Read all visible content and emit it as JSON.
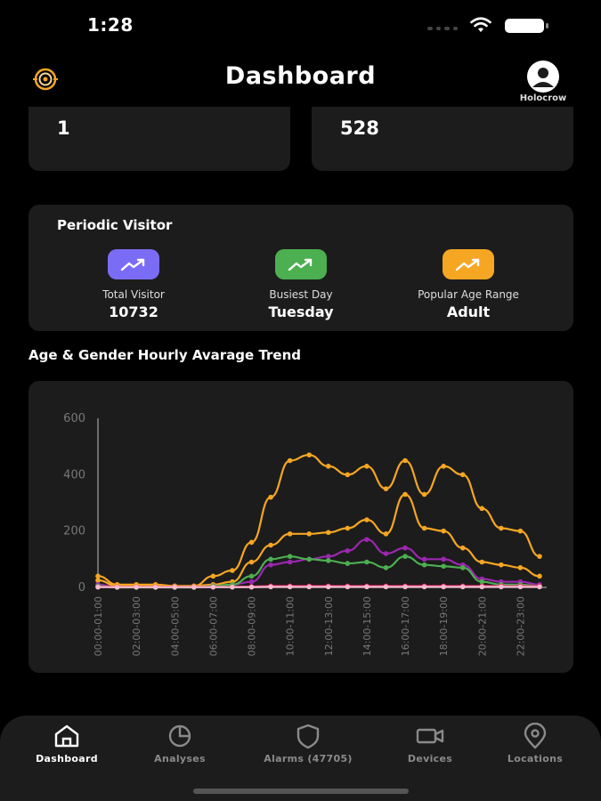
{
  "status_bar": {
    "time": "1:28"
  },
  "header": {
    "title": "Dashboard",
    "profile_name": "Holocrow"
  },
  "stat_cards": [
    {
      "value": "1"
    },
    {
      "value": "528"
    }
  ],
  "periodic_visitor": {
    "title": "Periodic Visitor",
    "metrics": [
      {
        "label": "Total Visitor",
        "value": "10732",
        "color": "#7b6cf6",
        "icon": "trend-up-icon"
      },
      {
        "label": "Busiest Day",
        "value": "Tuesday",
        "color": "#4caf50",
        "icon": "trend-up-icon"
      },
      {
        "label": "Popular Age Range",
        "value": "Adult",
        "color": "#f5a623",
        "icon": "trend-up-icon"
      }
    ]
  },
  "chart_section": {
    "title": "Age & Gender Hourly Avarage Trend"
  },
  "chart_data": {
    "type": "line",
    "ylim": [
      0,
      600
    ],
    "yticks": [
      "600",
      "400",
      "200",
      "0"
    ],
    "categories": [
      "00:00-01:00",
      "01:00-02:00",
      "02:00-03:00",
      "03:00-04:00",
      "04:00-05:00",
      "05:00-06:00",
      "06:00-07:00",
      "07:00-08:00",
      "08:00-09:00",
      "09:00-10:00",
      "10:00-11:00",
      "11:00-12:00",
      "12:00-13:00",
      "13:00-14:00",
      "14:00-15:00",
      "15:00-16:00",
      "16:00-17:00",
      "17:00-18:00",
      "18:00-19:00",
      "19:00-20:00",
      "20:00-21:00",
      "21:00-22:00",
      "22:00-23:00",
      "23:00-00:00"
    ],
    "xtick_labels": [
      "00:00-01:00",
      "02:00-03:00",
      "04:00-05:00",
      "06:00-07:00",
      "08:00-09:00",
      "10:00-11:00",
      "12:00-13:00",
      "14:00-15:00",
      "16:00-17:00",
      "18:00-19:00",
      "20:00-21:00",
      "22:00-23:00"
    ],
    "series": [
      {
        "color": "#f5a623",
        "values": [
          40,
          10,
          10,
          10,
          5,
          5,
          40,
          60,
          160,
          320,
          450,
          470,
          430,
          400,
          430,
          350,
          450,
          330,
          430,
          400,
          280,
          210,
          200,
          110
        ]
      },
      {
        "color": "#f5a623",
        "values": [
          25,
          5,
          5,
          5,
          5,
          5,
          10,
          20,
          90,
          150,
          190,
          190,
          195,
          210,
          240,
          190,
          330,
          210,
          200,
          140,
          90,
          80,
          70,
          40
        ]
      },
      {
        "color": "#9c27b0",
        "values": [
          10,
          0,
          0,
          0,
          0,
          0,
          5,
          10,
          20,
          80,
          90,
          100,
          110,
          130,
          170,
          120,
          140,
          100,
          100,
          80,
          30,
          20,
          20,
          10
        ]
      },
      {
        "color": "#4caf50",
        "values": [
          5,
          0,
          0,
          0,
          0,
          0,
          5,
          10,
          40,
          100,
          110,
          100,
          95,
          85,
          90,
          70,
          110,
          80,
          75,
          70,
          20,
          10,
          10,
          5
        ]
      },
      {
        "color": "#e91e63",
        "values": [
          2,
          2,
          2,
          2,
          2,
          2,
          2,
          2,
          3,
          5,
          5,
          5,
          5,
          5,
          5,
          5,
          5,
          5,
          5,
          5,
          5,
          5,
          5,
          5
        ]
      },
      {
        "color": "#f8bbd0",
        "values": [
          1,
          1,
          1,
          1,
          1,
          1,
          1,
          1,
          1,
          2,
          2,
          2,
          2,
          2,
          2,
          2,
          2,
          2,
          2,
          2,
          2,
          2,
          2,
          2
        ]
      }
    ]
  },
  "bottom_nav": {
    "items": [
      {
        "label": "Dashboard",
        "icon": "home-icon"
      },
      {
        "label": "Analyses",
        "icon": "pie-chart-icon"
      },
      {
        "label": "Alarms (47705)",
        "icon": "shield-icon"
      },
      {
        "label": "Devices",
        "icon": "video-camera-icon"
      },
      {
        "label": "Locations",
        "icon": "location-pin-icon"
      }
    ]
  }
}
